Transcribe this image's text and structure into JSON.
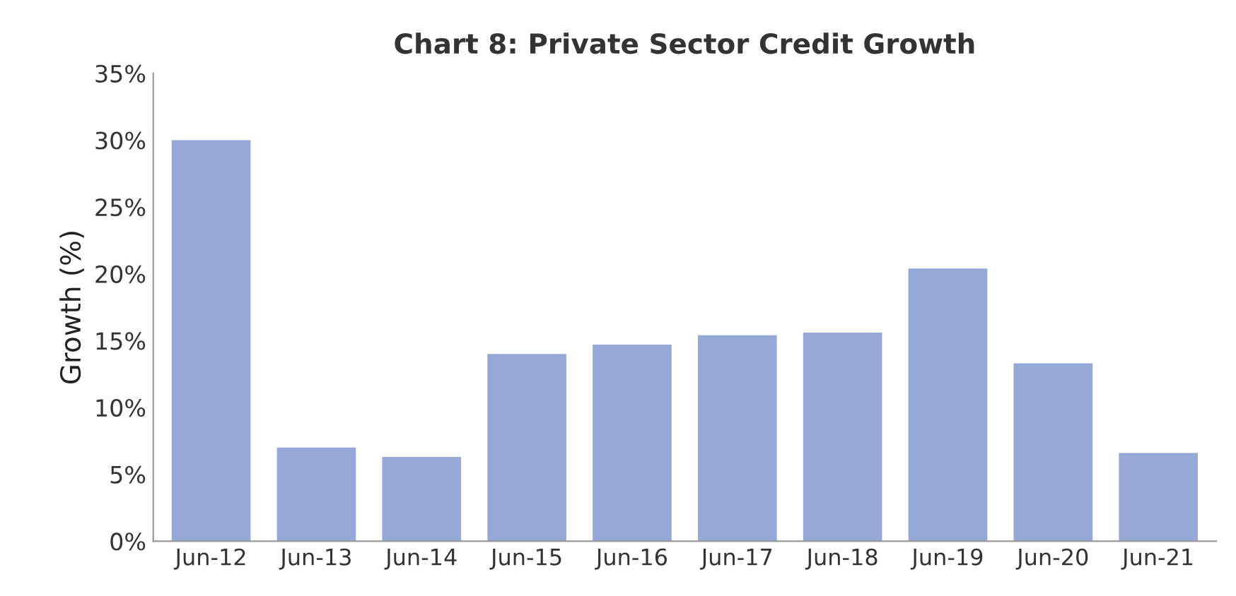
{
  "chart_data": {
    "type": "bar",
    "title": "Chart 8: Private Sector Credit Growth",
    "ylabel": "Growth (%)",
    "categories": [
      "Jun-12",
      "Jun-13",
      "Jun-14",
      "Jun-15",
      "Jun-16",
      "Jun-17",
      "Jun-18",
      "Jun-19",
      "Jun-20",
      "Jun-21"
    ],
    "values": [
      30.0,
      7.0,
      6.3,
      14.0,
      14.7,
      15.4,
      15.6,
      20.4,
      13.3,
      6.6
    ],
    "color": "#95a8d8",
    "ylim": [
      0,
      35
    ],
    "yticks": [
      {
        "value": 0,
        "label": "0%"
      },
      {
        "value": 5,
        "label": "5%"
      },
      {
        "value": 10,
        "label": "10%"
      },
      {
        "value": 15,
        "label": "15%"
      },
      {
        "value": 20,
        "label": "20%"
      },
      {
        "value": 25,
        "label": "25%"
      },
      {
        "value": 30,
        "label": "30%"
      },
      {
        "value": 35,
        "label": "35%"
      }
    ],
    "grid": false
  }
}
